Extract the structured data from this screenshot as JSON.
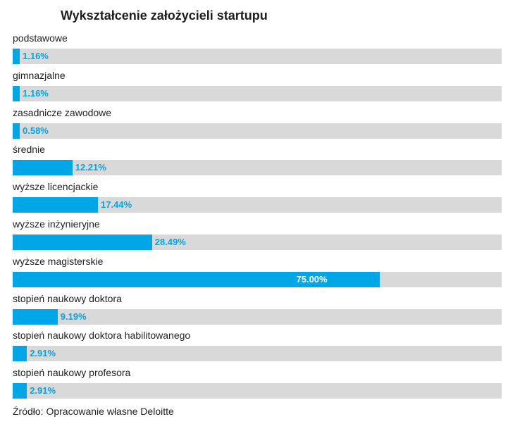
{
  "chart_data": {
    "type": "bar",
    "orientation": "horizontal",
    "title": "Wykształcenie założycieli startupu",
    "categories": [
      "podstawowe",
      "gimnazjalne",
      "zasadnicze zawodowe",
      "średnie",
      "wyższe licencjackie",
      "wyższe inżynieryjne",
      "wyższe magisterskie",
      "stopień naukowy doktora",
      "stopień naukowy doktora habilitowanego",
      "stopień naukowy profesora"
    ],
    "values": [
      1.16,
      1.16,
      0.58,
      12.21,
      17.44,
      28.49,
      75.0,
      9.19,
      2.91,
      2.91
    ],
    "value_labels": [
      "1.16%",
      "1.16%",
      "0.58%",
      "12.21%",
      "17.44%",
      "28.49%",
      "75.00%",
      "9.19%",
      "2.91%",
      "2.91%"
    ],
    "xlim": [
      0,
      100
    ],
    "unit": "%",
    "grid": false,
    "legend": "none",
    "colors": {
      "bar": "#00a6e6",
      "track": "#d9d9d9",
      "value_label": "#00a6e6",
      "value_label_inside": "#ffffff"
    }
  },
  "source": "Źródło: Opracowanie własne Deloitte"
}
